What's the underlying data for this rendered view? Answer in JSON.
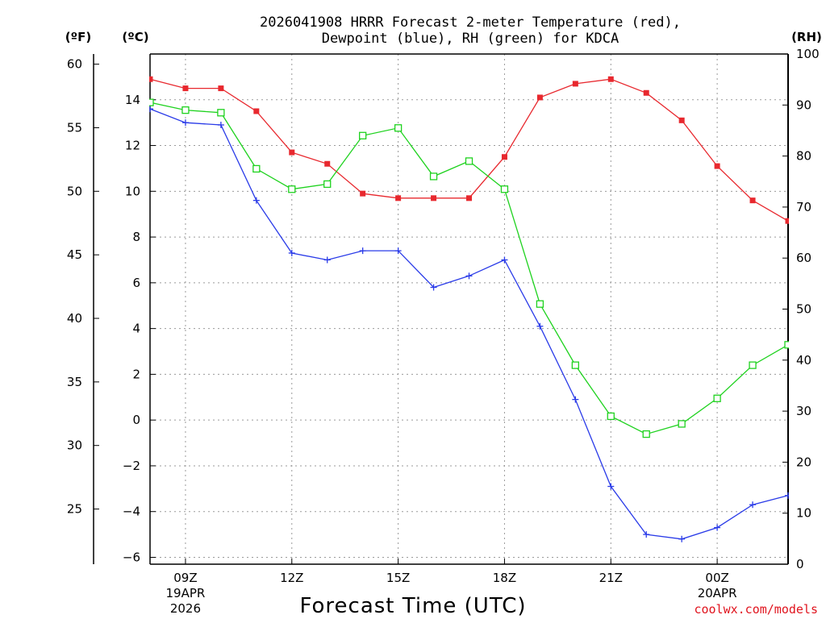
{
  "chart_data": {
    "type": "line",
    "title": [
      "2026041908 HRRR Forecast 2-meter Temperature (red),",
      "Dewpoint (blue), RH (green) for KDCA"
    ],
    "xlabel": "Forecast Time (UTC)",
    "credit": "coolwx.com/models",
    "unit_labels": {
      "fahrenheit": "(ºF)",
      "celsius": "(ºC)",
      "rh": "(RH)"
    },
    "x_hours": [
      8,
      9,
      10,
      11,
      12,
      13,
      14,
      15,
      16,
      17,
      18,
      19,
      20,
      21,
      22,
      23,
      24,
      25,
      26
    ],
    "x_ticks": [
      {
        "hour": 9,
        "label": "09Z",
        "date": "19APR",
        "year": "2026"
      },
      {
        "hour": 12,
        "label": "12Z"
      },
      {
        "hour": 15,
        "label": "15Z"
      },
      {
        "hour": 18,
        "label": "18Z"
      },
      {
        "hour": 21,
        "label": "21Z"
      },
      {
        "hour": 24,
        "label": "00Z",
        "date": "20APR"
      }
    ],
    "xlim": [
      8,
      26
    ],
    "y_celsius": {
      "lim": [
        -6.3,
        16.0
      ],
      "ticks": [
        14,
        12,
        10,
        8,
        6,
        4,
        2,
        0,
        -2,
        -4,
        -6
      ],
      "tick_labels": [
        "14",
        "12",
        "10",
        "8",
        "6",
        "4",
        "2",
        "0",
        "−2",
        "−4",
        "−6"
      ]
    },
    "y_fahrenheit": {
      "ticks": [
        60,
        55,
        50,
        45,
        40,
        35,
        30,
        25
      ],
      "tick_labels": [
        "60",
        "55",
        "50",
        "45",
        "40",
        "35",
        "30",
        "25"
      ]
    },
    "y_rh": {
      "lim": [
        0,
        100
      ],
      "ticks": [
        100,
        90,
        80,
        70,
        60,
        50,
        40,
        30,
        20,
        10,
        0
      ],
      "tick_labels": [
        "100",
        "90",
        "80",
        "70",
        "60",
        "50",
        "40",
        "30",
        "20",
        "10",
        "0"
      ]
    },
    "series": [
      {
        "name": "2-meter Temperature",
        "axis": "celsius",
        "color": "#e8282e",
        "marker": "filled-square",
        "values": [
          14.9,
          14.5,
          14.5,
          13.5,
          11.7,
          11.2,
          9.9,
          9.7,
          9.7,
          9.7,
          11.5,
          14.1,
          14.7,
          14.9,
          14.3,
          13.1,
          11.1,
          9.6,
          8.7
        ]
      },
      {
        "name": "Dewpoint",
        "axis": "celsius",
        "color": "#2a3be8",
        "marker": "plus",
        "values": [
          13.6,
          13.0,
          12.9,
          9.6,
          7.3,
          7.0,
          7.4,
          7.4,
          5.8,
          6.3,
          7.0,
          4.1,
          0.9,
          -2.9,
          -5.0,
          -5.2,
          -4.7,
          -3.7,
          -3.3
        ]
      },
      {
        "name": "RH",
        "axis": "rh",
        "color": "#1ed21e",
        "marker": "open-square",
        "values": [
          90.5,
          89.0,
          88.5,
          77.5,
          73.5,
          74.5,
          84.0,
          85.5,
          76.0,
          79.0,
          73.5,
          51.0,
          39.0,
          29.0,
          25.5,
          27.5,
          32.5,
          39.0,
          43.0
        ]
      }
    ],
    "grid": true
  }
}
